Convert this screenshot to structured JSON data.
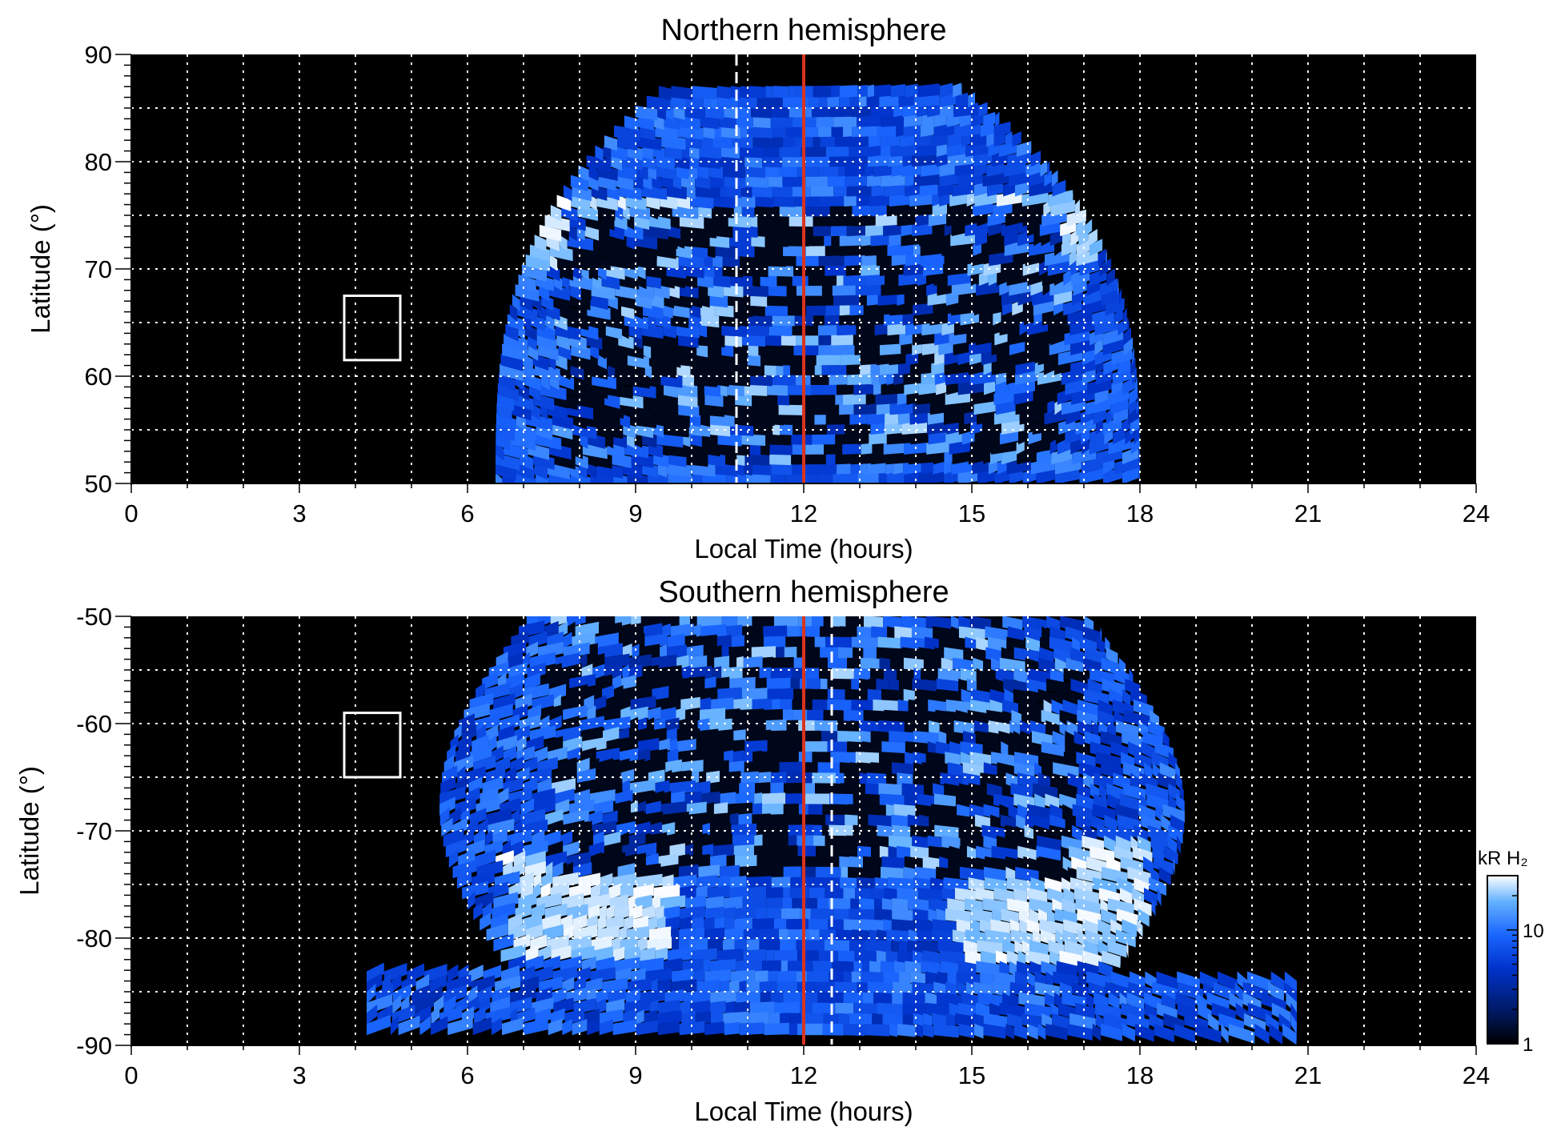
{
  "chart_data": [
    {
      "type": "heatmap",
      "title": "Northern hemisphere",
      "xlabel": "Local Time (hours)",
      "ylabel": "Latitude (°)",
      "xlim": [
        0,
        24
      ],
      "ylim": [
        50,
        90
      ],
      "x_ticks": [
        "0",
        "3",
        "6",
        "9",
        "12",
        "15",
        "18",
        "21",
        "24"
      ],
      "y_ticks": [
        "50",
        "60",
        "70",
        "80",
        "90"
      ],
      "grid": true,
      "noon_line_lt": 12,
      "dashed_line_lt": 10.8,
      "emission_region": {
        "lt_min_at_low_lat": 6.5,
        "lt_max_at_low_lat": 18.0,
        "lat_max": 87
      },
      "bright_oval": {
        "dawn": {
          "lt_range": [
            7.0,
            9.9
          ],
          "lat_range": [
            70,
            77
          ]
        },
        "dusk": {
          "lt_range": [
            14.5,
            17.2
          ],
          "lat_range": [
            70,
            77
          ]
        }
      },
      "reference_box": {
        "lt_range": [
          3.8,
          4.8
        ],
        "lat_range": [
          61.5,
          67.5
        ]
      }
    },
    {
      "type": "heatmap",
      "title": "Southern hemisphere",
      "xlabel": "Local Time (hours)",
      "ylabel": "Latitude (°)",
      "xlim": [
        0,
        24
      ],
      "ylim": [
        -90,
        -50
      ],
      "x_ticks": [
        "0",
        "3",
        "6",
        "9",
        "12",
        "15",
        "18",
        "21",
        "24"
      ],
      "y_ticks": [
        "-50",
        "-60",
        "-70",
        "-80",
        "-90"
      ],
      "grid": true,
      "noon_line_lt": 12,
      "dashed_line_lt": 12.5,
      "emission_region": {
        "lt_min_at_high_lat": 5.5,
        "lt_max_at_high_lat": 20.0,
        "lat_min": -89
      },
      "bright_oval": {
        "dawn": {
          "lt_range": [
            6.5,
            9.5
          ],
          "lat_range": [
            -82,
            -72
          ]
        },
        "dusk": {
          "lt_range": [
            14.5,
            18.0
          ],
          "lat_range": [
            -82,
            -70
          ]
        }
      },
      "reference_box": {
        "lt_range": [
          3.8,
          4.8
        ],
        "lat_range": [
          -65,
          -59
        ]
      }
    }
  ],
  "colorbar": {
    "label": "kR H₂",
    "scale": "log",
    "range": [
      1,
      30
    ],
    "ticks": [
      "10",
      "1"
    ],
    "colors": [
      "#000000",
      "#001a66",
      "#0033cc",
      "#1a66ff",
      "#66b3ff",
      "#ffffff"
    ]
  },
  "colors": {
    "noon_line": "#d9341f",
    "grid": "#ffffff",
    "background": "#000000"
  }
}
